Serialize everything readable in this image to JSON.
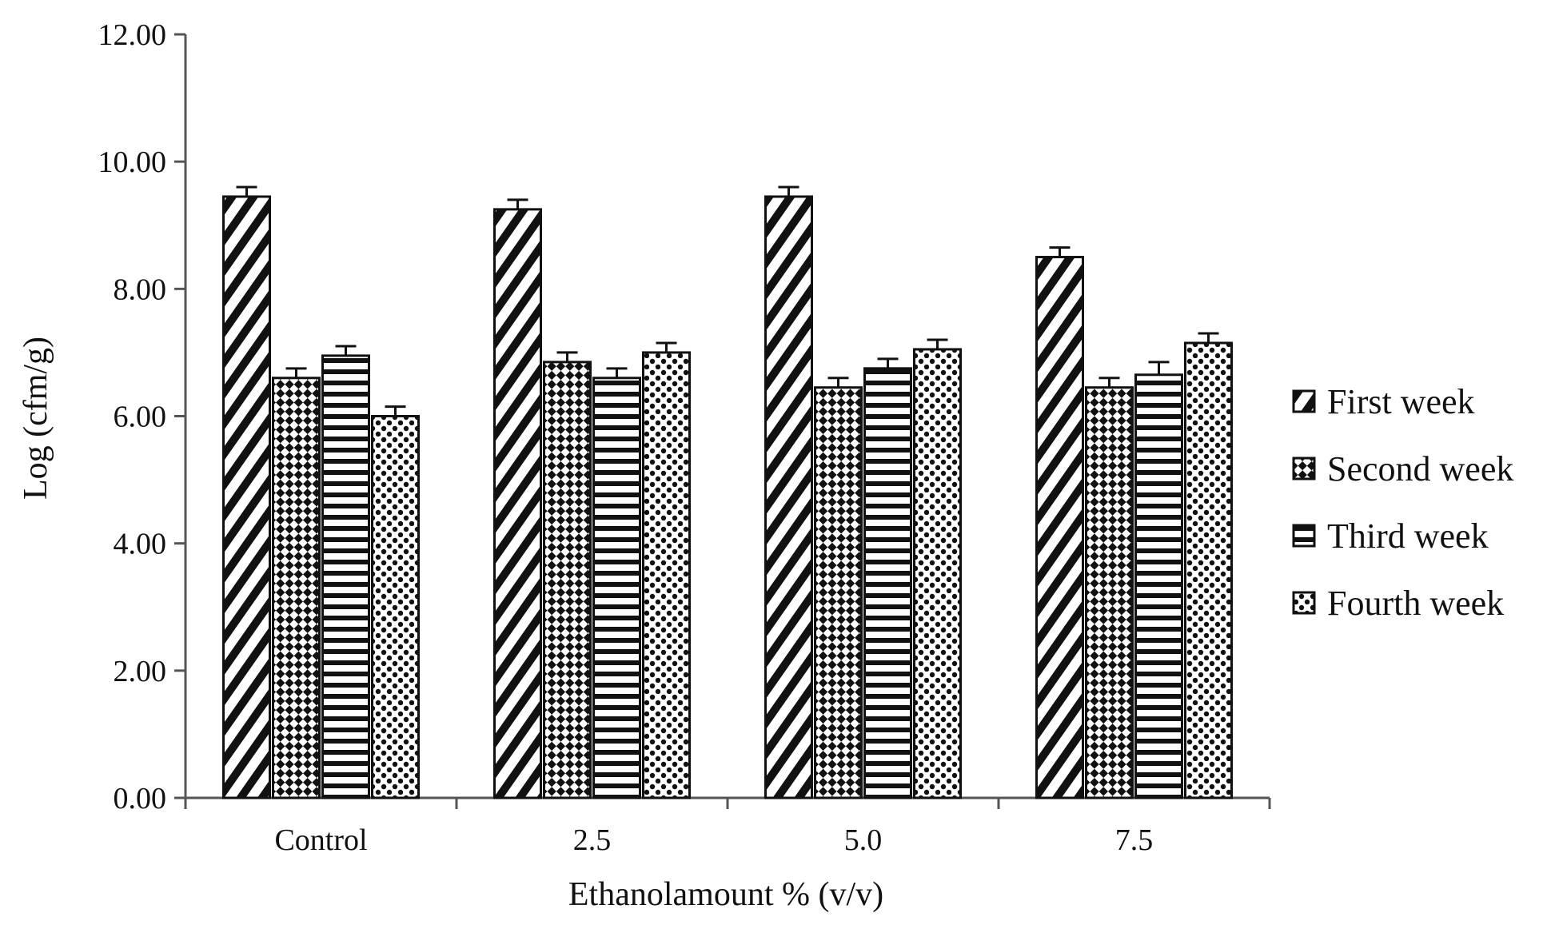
{
  "chart_data": {
    "type": "bar",
    "title": "",
    "xlabel": "Ethanolamount % (v/v)",
    "ylabel": "Log (cfm/g)",
    "ylim": [
      0,
      12
    ],
    "yticks": [
      "0.00",
      "2.00",
      "4.00",
      "6.00",
      "8.00",
      "10.00",
      "12.00"
    ],
    "categories": [
      "Control",
      "2.5",
      "5.0",
      "7.5"
    ],
    "legend_position": "right",
    "grid": false,
    "error_bars": true,
    "series": [
      {
        "name": "First week",
        "pattern": "diagonal-stripes",
        "values": [
          9.45,
          9.25,
          9.45,
          8.5
        ],
        "errors": [
          0.15,
          0.15,
          0.15,
          0.15
        ]
      },
      {
        "name": "Second week",
        "pattern": "checker-diamond",
        "values": [
          6.6,
          6.85,
          6.45,
          6.45
        ],
        "errors": [
          0.15,
          0.15,
          0.15,
          0.15
        ]
      },
      {
        "name": "Third week",
        "pattern": "horizontal-stripes",
        "values": [
          6.95,
          6.6,
          6.75,
          6.65
        ],
        "errors": [
          0.15,
          0.15,
          0.15,
          0.2
        ]
      },
      {
        "name": "Fourth week",
        "pattern": "dots",
        "values": [
          6.0,
          7.0,
          7.05,
          7.15
        ],
        "errors": [
          0.15,
          0.15,
          0.15,
          0.15
        ]
      }
    ]
  }
}
